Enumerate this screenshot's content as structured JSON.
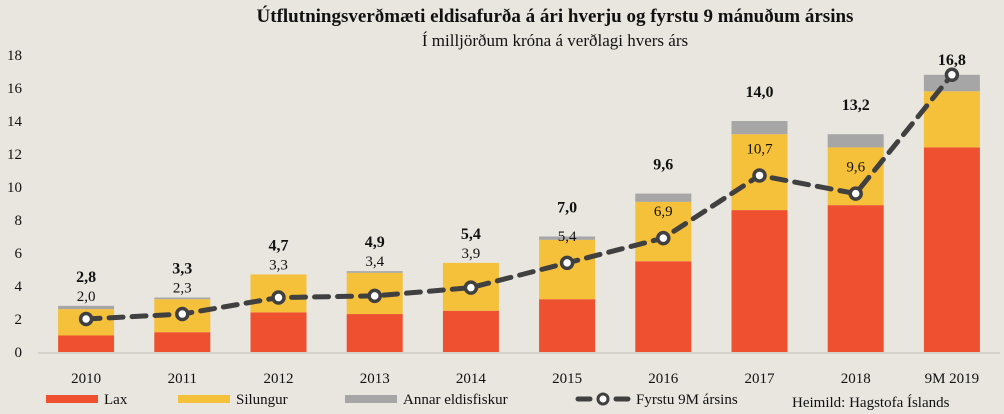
{
  "chart_data": {
    "type": "bar",
    "stacked": true,
    "title": "Útflutningsverðmæti eldisafurða á ári hverju og fyrstu 9 mánuðum ársins",
    "subtitle": "Í milljörðum króna á verðlagi hvers árs",
    "xlabel": "",
    "ylabel": "",
    "ylim": [
      0,
      18
    ],
    "yticks": [
      0,
      2,
      4,
      6,
      8,
      10,
      12,
      14,
      16,
      18
    ],
    "grid": false,
    "categories": [
      "2010",
      "2011",
      "2012",
      "2013",
      "2014",
      "2015",
      "2016",
      "2017",
      "2018",
      "9M 2019"
    ],
    "series": [
      {
        "name": "Lax",
        "type": "bar",
        "color": "#ee5030",
        "values": [
          1.0,
          1.2,
          2.4,
          2.3,
          2.5,
          3.2,
          5.5,
          8.6,
          8.9,
          12.4
        ]
      },
      {
        "name": "Silungur",
        "type": "bar",
        "color": "#f5c03a",
        "values": [
          1.6,
          2.0,
          2.3,
          2.5,
          2.9,
          3.6,
          3.6,
          4.6,
          3.5,
          3.4
        ]
      },
      {
        "name": "Annar eldisfiskur",
        "type": "bar",
        "color": "#a6a6a6",
        "values": [
          0.2,
          0.1,
          0.0,
          0.1,
          0.0,
          0.2,
          0.5,
          0.8,
          0.8,
          1.0
        ]
      },
      {
        "name": "Fyrstu 9M ársins",
        "type": "line",
        "style": "dashed",
        "marker": "circle",
        "color": "#404040",
        "values": [
          2.0,
          2.3,
          3.3,
          3.4,
          3.9,
          5.4,
          6.9,
          10.7,
          9.6,
          16.8
        ],
        "labels": [
          "2,0",
          "2,3",
          "3,3",
          "3,4",
          "3,9",
          "5,4",
          "6,9",
          "10,7",
          "9,6",
          ""
        ]
      }
    ],
    "totals": [
      2.8,
      3.3,
      4.7,
      4.9,
      5.4,
      7.0,
      9.6,
      14.0,
      13.2,
      16.8
    ],
    "total_labels": [
      "2,8",
      "3,3",
      "4,7",
      "4,9",
      "5,4",
      "7,0",
      "9,6",
      "14,0",
      "13,2",
      "16,8"
    ],
    "legend": {
      "position": "bottom",
      "items": [
        "Lax",
        "Silungur",
        "Annar eldisfiskur",
        "Fyrstu 9M ársins"
      ]
    },
    "source": "Heimild:  Hagstofa Íslands"
  }
}
